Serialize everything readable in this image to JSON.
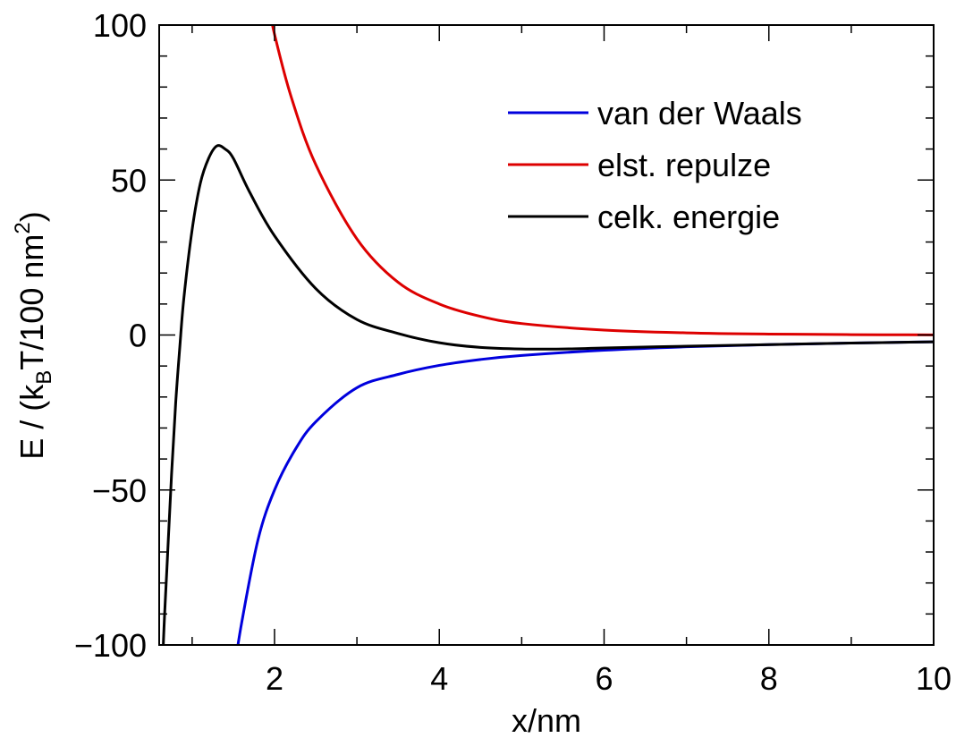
{
  "chart_data": {
    "type": "line",
    "xlabel": "x/nm",
    "ylabel": {
      "prefix": "E / (k",
      "sub": "B",
      "middle": "T/100 nm",
      "sup": "2",
      "suffix": ")"
    },
    "xlim": [
      0.6,
      10
    ],
    "ylim": [
      -100,
      100
    ],
    "xticks": [
      2,
      4,
      6,
      8,
      10
    ],
    "xtick_labels": [
      "2",
      "4",
      "6",
      "8",
      "10"
    ],
    "yticks": [
      -100,
      -50,
      0,
      50,
      100
    ],
    "ytick_labels": [
      "−100",
      "−50",
      "0",
      "50",
      "100"
    ],
    "grid": false,
    "legend_position": "top-right",
    "series": [
      {
        "name": "van der Waals",
        "color": "#0000dd",
        "x": [
          1.5,
          1.6,
          1.8,
          2.0,
          2.25,
          2.5,
          3.0,
          3.5,
          4.0,
          4.5,
          5.0,
          6.0,
          7.0,
          8.0,
          9.0,
          10.0
        ],
        "y": [
          -110,
          -93,
          -66,
          -50,
          -37,
          -28,
          -17,
          -12.7,
          -9.8,
          -7.9,
          -6.6,
          -4.9,
          -3.8,
          -3.1,
          -2.6,
          -2.2
        ]
      },
      {
        "name": "elst. repulze",
        "color": "#dd0000",
        "x": [
          1.95,
          2.0,
          2.2,
          2.5,
          3.0,
          3.5,
          4.0,
          4.5,
          5.0,
          6.0,
          7.0,
          8.0,
          9.0,
          10.0
        ],
        "y": [
          104,
          97,
          77,
          55,
          31,
          17,
          10,
          6,
          3.7,
          1.6,
          0.7,
          0.3,
          0.12,
          0.05
        ]
      },
      {
        "name": "celk. energie",
        "color": "#000000",
        "x": [
          0.62,
          0.65,
          0.7,
          0.75,
          0.8,
          0.85,
          0.9,
          1.0,
          1.1,
          1.2,
          1.3,
          1.4,
          1.5,
          1.7,
          2.0,
          2.5,
          3.0,
          3.5,
          4.0,
          4.5,
          5.0,
          5.5,
          6.0,
          7.0,
          8.0,
          9.0,
          10.0
        ],
        "y": [
          -130,
          -100,
          -72,
          -45,
          -22,
          -4,
          12,
          34,
          49,
          57,
          61,
          60,
          57,
          46,
          32,
          15,
          5,
          0.5,
          -2.5,
          -4,
          -4.5,
          -4.5,
          -4.2,
          -3.6,
          -3.1,
          -2.6,
          -2.2
        ]
      }
    ]
  }
}
